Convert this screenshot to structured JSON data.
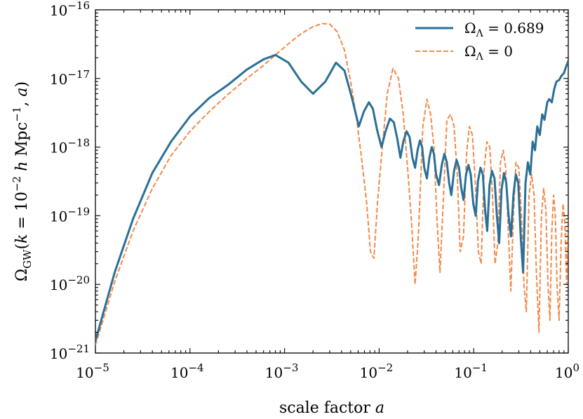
{
  "chart_data": {
    "type": "line",
    "title": "",
    "xlabel": "scale factor a",
    "ylabel": "ΩGW(k = 10^−2 h Mpc^−1, a)",
    "xscale": "log",
    "yscale": "log",
    "xlim": [
      1e-05,
      1
    ],
    "ylim": [
      1e-21,
      1e-16
    ],
    "grid": false,
    "legend_position": "top-right",
    "x_ticks": [
      {
        "value": 1e-05,
        "base": "10",
        "exp": "−5"
      },
      {
        "value": 0.0001,
        "base": "10",
        "exp": "−4"
      },
      {
        "value": 0.001,
        "base": "10",
        "exp": "−3"
      },
      {
        "value": 0.01,
        "base": "10",
        "exp": "−2"
      },
      {
        "value": 0.1,
        "base": "10",
        "exp": "−1"
      },
      {
        "value": 1,
        "base": "10",
        "exp": "0"
      }
    ],
    "y_ticks": [
      {
        "value": 1e-21,
        "base": "10",
        "exp": "−21"
      },
      {
        "value": 1e-20,
        "base": "10",
        "exp": "−20"
      },
      {
        "value": 1e-19,
        "base": "10",
        "exp": "−19"
      },
      {
        "value": 1e-18,
        "base": "10",
        "exp": "−18"
      },
      {
        "value": 1e-17,
        "base": "10",
        "exp": "−17"
      },
      {
        "value": 1e-16,
        "base": "10",
        "exp": "−16"
      }
    ],
    "series": [
      {
        "name": "ΩΛ = 0.689",
        "legend_symbol": "Ω",
        "legend_sub": "Λ",
        "legend_value": " = 0.689",
        "color": "#2a6f97",
        "style": "solid",
        "x": [
          1e-05,
          1.6e-05,
          2.5e-05,
          4e-05,
          6.3e-05,
          0.0001,
          0.00016,
          0.00025,
          0.0004,
          0.0006,
          0.0008,
          0.0011,
          0.0015,
          0.002,
          0.0027,
          0.0035,
          0.0043,
          0.0052,
          0.0061,
          0.0069,
          0.0078,
          0.0086,
          0.0095,
          0.0106,
          0.0117,
          0.013,
          0.0143,
          0.0156,
          0.0168,
          0.018,
          0.0195,
          0.021,
          0.0225,
          0.024,
          0.0255,
          0.027,
          0.0285,
          0.03,
          0.032,
          0.034,
          0.036,
          0.038,
          0.04,
          0.043,
          0.046,
          0.049,
          0.052,
          0.055,
          0.058,
          0.062,
          0.066,
          0.07,
          0.074,
          0.078,
          0.083,
          0.088,
          0.093,
          0.099,
          0.105,
          0.111,
          0.118,
          0.125,
          0.132,
          0.139,
          0.147,
          0.156,
          0.166,
          0.176,
          0.186,
          0.197,
          0.209,
          0.221,
          0.234,
          0.248,
          0.263,
          0.279,
          0.296,
          0.314,
          0.333,
          0.353,
          0.374,
          0.397,
          0.42,
          0.445,
          0.47,
          0.5,
          0.53,
          0.56,
          0.6,
          0.63,
          0.67,
          0.71,
          0.75,
          0.8,
          0.85,
          0.9,
          0.95,
          1.0
        ],
        "y": [
          1.5e-21,
          1.5e-20,
          9e-20,
          4.2e-19,
          1.2e-18,
          2.8e-18,
          5.2e-18,
          8e-18,
          1.35e-17,
          1.9e-17,
          2.2e-17,
          1.7e-17,
          9e-18,
          6e-18,
          9e-18,
          1.7e-17,
          1.3e-17,
          5e-18,
          2e-18,
          3.3e-18,
          4.5e-18,
          3.6e-18,
          1.8e-18,
          1e-18,
          1.7e-18,
          2.6e-18,
          2.3e-18,
          1.3e-18,
          7e-19,
          1.2e-18,
          1.7e-18,
          1.4e-18,
          7e-19,
          5e-19,
          9e-19,
          1.25e-18,
          1e-18,
          5e-19,
          3.5e-19,
          7e-19,
          1e-18,
          8e-19,
          4e-19,
          2.8e-19,
          5.5e-19,
          8e-19,
          6e-19,
          3e-19,
          2e-19,
          4.5e-19,
          6.5e-19,
          5e-19,
          2.5e-19,
          1.7e-19,
          4e-19,
          5.5e-19,
          4e-19,
          1.5e-19,
          1e-19,
          3.2e-19,
          5e-19,
          4e-19,
          1.2e-19,
          6e-20,
          2.8e-19,
          4.5e-19,
          3.5e-19,
          1e-19,
          4e-20,
          2.4e-19,
          4.2e-19,
          3e-19,
          1e-19,
          5e-20,
          2e-19,
          4e-19,
          3e-19,
          5e-20,
          1.5e-20,
          3e-19,
          6e-19,
          4e-19,
          1.2e-18,
          9e-19,
          2e-18,
          1.5e-18,
          3e-18,
          2.5e-18,
          4.5e-18,
          5e-18,
          4.5e-18,
          7e-18,
          9e-18,
          9.5e-18,
          1.1e-17,
          1.2e-17,
          1.5e-17,
          1.8e-17
        ]
      },
      {
        "name": "ΩΛ = 0",
        "legend_symbol": "Ω",
        "legend_sub": "Λ",
        "legend_value": " = 0",
        "color": "#f28a4a",
        "style": "dashed",
        "x": [
          1e-05,
          1.6e-05,
          2.5e-05,
          4e-05,
          6.3e-05,
          0.0001,
          0.00016,
          0.00025,
          0.0004,
          0.0006,
          0.0008,
          0.0011,
          0.0015,
          0.002,
          0.0025,
          0.003,
          0.0036,
          0.0043,
          0.005,
          0.0058,
          0.0066,
          0.0074,
          0.0081,
          0.0088,
          0.0096,
          0.0108,
          0.0122,
          0.014,
          0.016,
          0.018,
          0.02,
          0.022,
          0.024,
          0.026,
          0.029,
          0.032,
          0.035,
          0.038,
          0.041,
          0.044,
          0.048,
          0.052,
          0.057,
          0.062,
          0.067,
          0.072,
          0.078,
          0.084,
          0.09,
          0.097,
          0.104,
          0.112,
          0.12,
          0.129,
          0.138,
          0.148,
          0.158,
          0.168,
          0.18,
          0.192,
          0.205,
          0.218,
          0.232,
          0.247,
          0.263,
          0.28,
          0.3,
          0.32,
          0.34,
          0.36,
          0.385,
          0.41,
          0.435,
          0.46,
          0.49,
          0.52,
          0.55,
          0.58,
          0.61,
          0.64,
          0.67,
          0.7,
          0.73,
          0.76,
          0.8,
          0.84,
          0.88,
          0.92,
          0.96,
          1.0
        ],
        "y": [
          1.3e-21,
          1.1e-20,
          6e-20,
          2.5e-19,
          7.5e-19,
          1.7e-18,
          3.3e-18,
          5.8e-18,
          1e-17,
          1.55e-17,
          2.2e-17,
          3.2e-17,
          4.5e-17,
          5.7e-17,
          6.3e-17,
          6.2e-17,
          4.8e-17,
          2.6e-17,
          9e-18,
          2.5e-18,
          6e-19,
          1.5e-19,
          3e-20,
          2.4e-20,
          1.5e-19,
          1e-18,
          6e-18,
          1.4e-17,
          1e-17,
          3e-18,
          5e-19,
          8e-20,
          1e-20,
          5e-20,
          2e-18,
          5e-18,
          3e-18,
          1e-18,
          8e-20,
          1.5e-20,
          2e-19,
          2.5e-18,
          3e-18,
          2e-18,
          4e-19,
          3e-20,
          5e-20,
          8e-19,
          2e-18,
          1.5e-18,
          3e-19,
          3e-20,
          2e-20,
          5e-19,
          1.2e-18,
          1e-18,
          2e-19,
          2e-20,
          4e-20,
          6e-19,
          9e-19,
          5e-19,
          6e-20,
          8e-21,
          1e-19,
          6e-19,
          5e-19,
          1e-19,
          1e-20,
          4e-21,
          2e-19,
          4e-19,
          2e-19,
          1.5e-20,
          2e-21,
          1e-19,
          2.5e-19,
          1.2e-19,
          1e-20,
          3e-21,
          6e-20,
          2e-19,
          1e-19,
          1e-20,
          3e-21,
          4e-20,
          1.5e-19,
          8e-20,
          1e-20,
          1e-19
        ]
      }
    ]
  }
}
